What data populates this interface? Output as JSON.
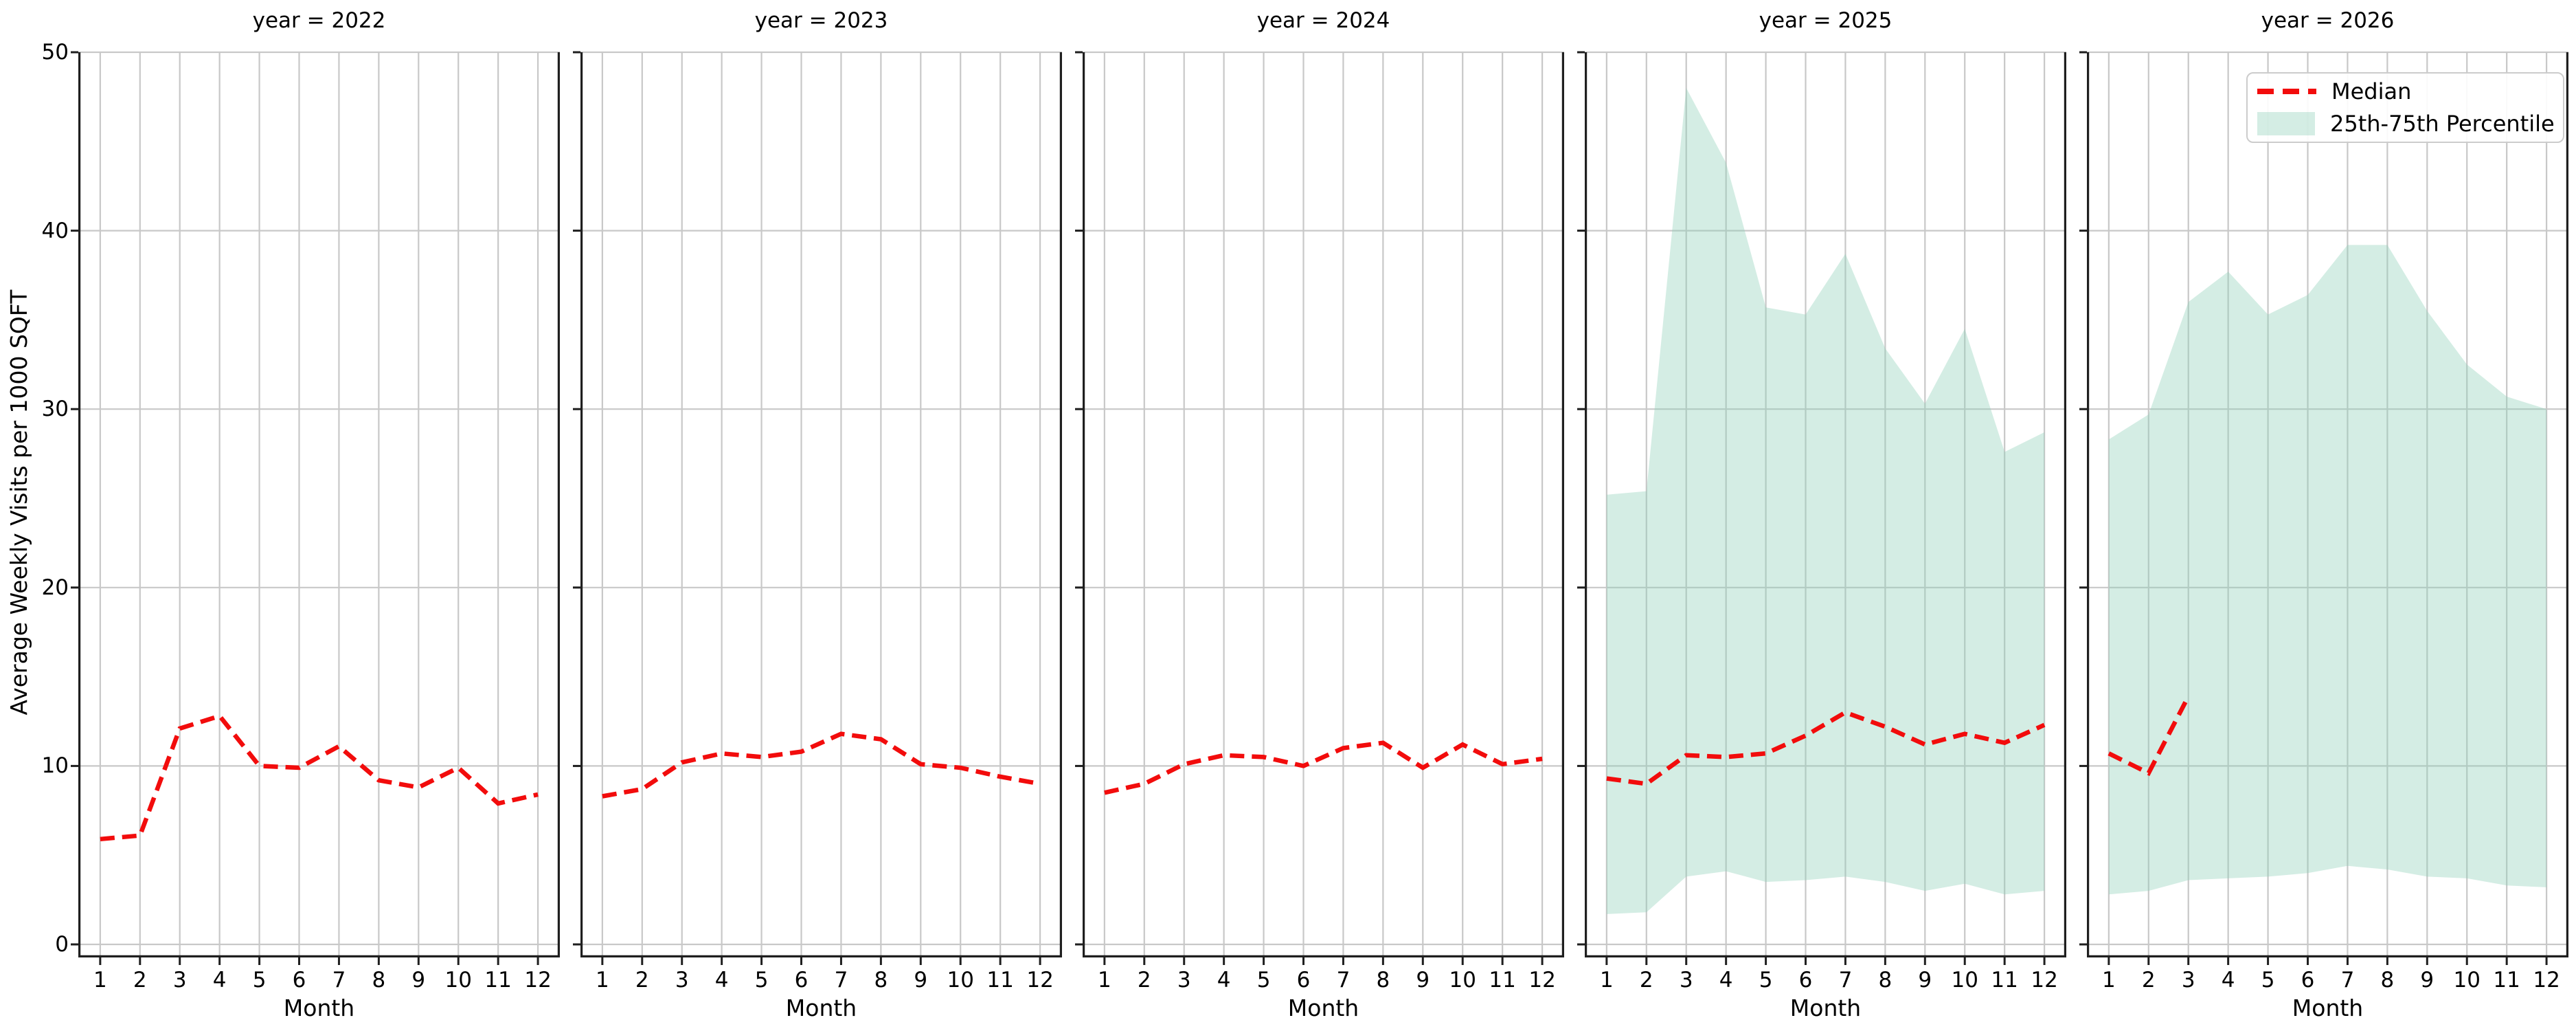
{
  "figure": {
    "y_tick_labels": [
      "0",
      "10",
      "20",
      "30",
      "40",
      "50"
    ],
    "x_tick_labels": [
      "1",
      "2",
      "3",
      "4",
      "5",
      "6",
      "7",
      "8",
      "9",
      "10",
      "11",
      "12"
    ],
    "legend": {
      "median_label": "Median",
      "band_label": "25th-75th Percentile"
    },
    "colors": {
      "median": "#f20c0c",
      "band_fill_rgba": "rgba(143,208,184,0.38)",
      "grid": "#c8c8c8",
      "spine": "#1f1f1f",
      "legend_border": "#cccccc"
    }
  },
  "chart_data": {
    "type": "line",
    "x": [
      1,
      2,
      3,
      4,
      5,
      6,
      7,
      8,
      9,
      10,
      11,
      12
    ],
    "xlabel": "Month",
    "ylabel": "Average Weekly Visits per 1000 SQFT",
    "ylim": [
      0,
      50
    ],
    "y_ticks": [
      0,
      10,
      20,
      30,
      40,
      50
    ],
    "grid": true,
    "legend_position": "upper-right-last-facet",
    "series_legend": [
      "Median",
      "25th-75th Percentile"
    ],
    "facets": [
      {
        "label": "year = 2022",
        "year": 2022,
        "median": [
          5.9,
          6.1,
          12.1,
          12.8,
          10.0,
          9.9,
          11.1,
          9.2,
          8.8,
          9.9,
          7.9,
          8.4
        ],
        "p25": null,
        "p75": null
      },
      {
        "label": "year = 2023",
        "year": 2023,
        "median": [
          8.3,
          8.7,
          10.2,
          10.7,
          10.5,
          10.8,
          11.8,
          11.5,
          10.1,
          9.9,
          9.4,
          9.0
        ],
        "p25": null,
        "p75": null
      },
      {
        "label": "year = 2024",
        "year": 2024,
        "median": [
          8.5,
          9.0,
          10.1,
          10.6,
          10.5,
          10.0,
          11.0,
          11.3,
          9.9,
          11.2,
          10.1,
          10.4
        ],
        "p25": null,
        "p75": null
      },
      {
        "label": "year = 2025",
        "year": 2025,
        "median": [
          9.3,
          9.0,
          10.6,
          10.5,
          10.7,
          11.7,
          13.0,
          12.2,
          11.2,
          11.8,
          11.3,
          12.3
        ],
        "p25": [
          1.7,
          1.8,
          3.8,
          4.1,
          3.5,
          3.6,
          3.8,
          3.5,
          3.0,
          3.4,
          2.8,
          3.0
        ],
        "p75": [
          25.2,
          25.4,
          48.0,
          43.8,
          35.7,
          35.3,
          38.7,
          33.4,
          30.3,
          34.5,
          27.6,
          28.7
        ]
      },
      {
        "label": "year = 2026",
        "year": 2026,
        "median": [
          10.7,
          9.6,
          13.9
        ],
        "p25": [
          2.8,
          3.0,
          3.6,
          3.7,
          3.8,
          4.0,
          4.4,
          4.2,
          3.8,
          3.7,
          3.3,
          3.2
        ],
        "p75": [
          28.3,
          29.7,
          36.0,
          37.7,
          35.3,
          36.4,
          39.2,
          39.2,
          35.5,
          32.5,
          30.7,
          30.0
        ]
      }
    ]
  }
}
